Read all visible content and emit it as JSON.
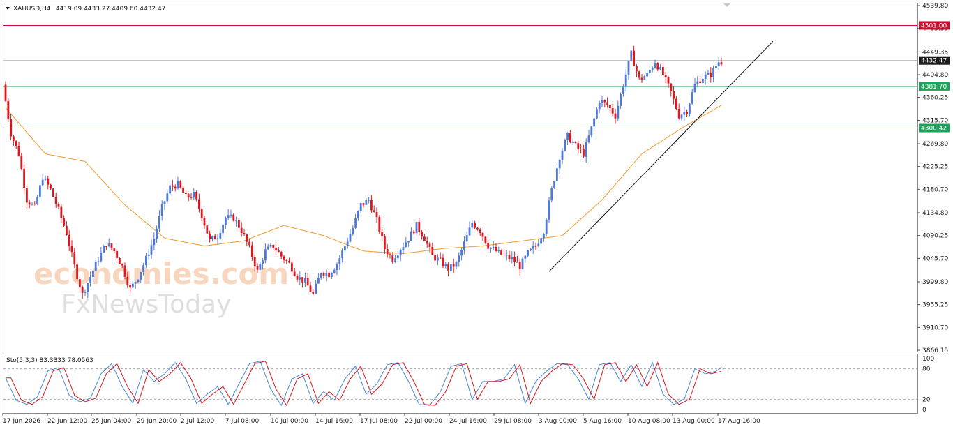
{
  "header": {
    "symbol": "XAUUSD,H4",
    "ohlc": "4419.09 4433.27 4409.60 4432.47",
    "dropdown_icon": "triangle-down-icon"
  },
  "indicator": {
    "label": "Sto(5,3,3) 83.3333 78.0563",
    "levels": [
      "100",
      "80",
      "20",
      "0"
    ],
    "main_color": "#4a86d8",
    "signal_color": "#d0141e"
  },
  "watermark": {
    "line1": "economies.com",
    "line2": "FxNewsToday"
  },
  "colors": {
    "bull": "#4f79d8",
    "bear": "#e0161d",
    "ma": "#f39a2a",
    "resistance": "#c8102e",
    "support": "#1fa25a",
    "trendline": "#111111"
  },
  "chart_data": {
    "type": "candlestick",
    "title": "XAUUSD,H4",
    "ylim": [
      3866.15,
      4539.8
    ],
    "y_ticks": [
      "4539.80",
      "4495.35",
      "4449.35",
      "4404.80",
      "4360.25",
      "4315.70",
      "4269.80",
      "4225.25",
      "4180.70",
      "4134.80",
      "4090.25",
      "4045.70",
      "3999.80",
      "3955.25",
      "3910.70",
      "3866.15"
    ],
    "x_ticks": [
      "17 Jun 2026",
      "22 Jun 12:00",
      "25 Jun 04:00",
      "29 Jun 20:00",
      "2 Jul 12:00",
      "7 Jul 08:00",
      "10 Jul 00:00",
      "14 Jul 16:00",
      "17 Jul 08:00",
      "22 Jul 00:00",
      "24 Jul 16:00",
      "29 Jul 08:00",
      "3 Aug 00:00",
      "5 Aug 16:00",
      "10 Aug 08:00",
      "13 Aug 00:00",
      "17 Aug 16:00"
    ],
    "levels": [
      {
        "value": 4501.0,
        "label": "4501.00",
        "kind": "resistance"
      },
      {
        "value": 4432.47,
        "label": "4432.47",
        "kind": "current"
      },
      {
        "value": 4381.7,
        "label": "4381.70",
        "kind": "support"
      },
      {
        "value": 4300.42,
        "label": "4300.42",
        "kind": "support"
      }
    ],
    "trendline": {
      "from": [
        4,
        4020
      ],
      "to": [
        109,
        4470
      ]
    },
    "anchors": [
      [
        0,
        4385
      ],
      [
        3,
        4290
      ],
      [
        6,
        4250
      ],
      [
        9,
        4160
      ],
      [
        12,
        4145
      ],
      [
        15,
        4205
      ],
      [
        18,
        4180
      ],
      [
        21,
        4140
      ],
      [
        24,
        4095
      ],
      [
        27,
        4030
      ],
      [
        30,
        3975
      ],
      [
        33,
        4010
      ],
      [
        36,
        4045
      ],
      [
        39,
        4075
      ],
      [
        42,
        4060
      ],
      [
        45,
        4030
      ],
      [
        48,
        3985
      ],
      [
        51,
        4010
      ],
      [
        54,
        4045
      ],
      [
        57,
        4085
      ],
      [
        60,
        4145
      ],
      [
        63,
        4185
      ],
      [
        66,
        4190
      ],
      [
        69,
        4165
      ],
      [
        72,
        4170
      ],
      [
        75,
        4130
      ],
      [
        78,
        4080
      ],
      [
        81,
        4090
      ],
      [
        84,
        4125
      ],
      [
        87,
        4125
      ],
      [
        90,
        4100
      ],
      [
        93,
        4065
      ],
      [
        96,
        4020
      ],
      [
        99,
        4060
      ],
      [
        102,
        4070
      ],
      [
        105,
        4050
      ],
      [
        108,
        4035
      ],
      [
        111,
        4010
      ],
      [
        114,
        4000
      ],
      [
        117,
        3975
      ],
      [
        120,
        4020
      ],
      [
        123,
        4015
      ],
      [
        126,
        4035
      ],
      [
        129,
        4070
      ],
      [
        132,
        4105
      ],
      [
        135,
        4150
      ],
      [
        138,
        4160
      ],
      [
        141,
        4120
      ],
      [
        144,
        4065
      ],
      [
        147,
        4045
      ],
      [
        150,
        4065
      ],
      [
        153,
        4085
      ],
      [
        156,
        4110
      ],
      [
        159,
        4085
      ],
      [
        162,
        4050
      ],
      [
        165,
        4040
      ],
      [
        168,
        4025
      ],
      [
        171,
        4035
      ],
      [
        174,
        4075
      ],
      [
        177,
        4115
      ],
      [
        180,
        4100
      ],
      [
        183,
        4070
      ],
      [
        186,
        4060
      ],
      [
        189,
        4050
      ],
      [
        192,
        4045
      ],
      [
        195,
        4030
      ],
      [
        198,
        4055
      ],
      [
        201,
        4070
      ],
      [
        204,
        4100
      ],
      [
        207,
        4180
      ],
      [
        210,
        4245
      ],
      [
        213,
        4285
      ],
      [
        216,
        4265
      ],
      [
        219,
        4250
      ],
      [
        222,
        4300
      ],
      [
        225,
        4355
      ],
      [
        228,
        4345
      ],
      [
        231,
        4325
      ],
      [
        234,
        4385
      ],
      [
        237,
        4445
      ],
      [
        240,
        4395
      ],
      [
        243,
        4405
      ],
      [
        246,
        4430
      ],
      [
        249,
        4405
      ],
      [
        252,
        4370
      ],
      [
        255,
        4325
      ],
      [
        258,
        4335
      ],
      [
        261,
        4385
      ],
      [
        264,
        4400
      ],
      [
        267,
        4405
      ],
      [
        270,
        4430
      ]
    ],
    "ma_anchors": [
      [
        0,
        4340
      ],
      [
        15,
        4250
      ],
      [
        30,
        4235
      ],
      [
        45,
        4150
      ],
      [
        60,
        4085
      ],
      [
        75,
        4070
      ],
      [
        90,
        4080
      ],
      [
        105,
        4110
      ],
      [
        120,
        4090
      ],
      [
        135,
        4060
      ],
      [
        150,
        4055
      ],
      [
        165,
        4065
      ],
      [
        180,
        4070
      ],
      [
        195,
        4080
      ],
      [
        210,
        4090
      ],
      [
        225,
        4160
      ],
      [
        240,
        4250
      ],
      [
        255,
        4300
      ],
      [
        270,
        4345
      ]
    ],
    "stoch_anchors": [
      [
        0,
        62
      ],
      [
        4,
        18
      ],
      [
        8,
        10
      ],
      [
        12,
        25
      ],
      [
        16,
        76
      ],
      [
        20,
        82
      ],
      [
        24,
        28
      ],
      [
        28,
        15
      ],
      [
        32,
        22
      ],
      [
        36,
        70
      ],
      [
        40,
        90
      ],
      [
        44,
        45
      ],
      [
        48,
        12
      ],
      [
        52,
        78
      ],
      [
        56,
        55
      ],
      [
        60,
        70
      ],
      [
        64,
        92
      ],
      [
        68,
        60
      ],
      [
        72,
        12
      ],
      [
        76,
        30
      ],
      [
        80,
        45
      ],
      [
        84,
        10
      ],
      [
        88,
        50
      ],
      [
        92,
        90
      ],
      [
        96,
        95
      ],
      [
        100,
        40
      ],
      [
        104,
        8
      ],
      [
        108,
        60
      ],
      [
        112,
        70
      ],
      [
        116,
        12
      ],
      [
        120,
        35
      ],
      [
        124,
        18
      ],
      [
        128,
        60
      ],
      [
        132,
        85
      ],
      [
        136,
        30
      ],
      [
        140,
        50
      ],
      [
        144,
        88
      ],
      [
        148,
        92
      ],
      [
        152,
        55
      ],
      [
        156,
        10
      ],
      [
        160,
        8
      ],
      [
        164,
        35
      ],
      [
        168,
        85
      ],
      [
        172,
        90
      ],
      [
        176,
        20
      ],
      [
        180,
        55
      ],
      [
        184,
        55
      ],
      [
        188,
        60
      ],
      [
        192,
        88
      ],
      [
        196,
        12
      ],
      [
        200,
        55
      ],
      [
        204,
        75
      ],
      [
        208,
        90
      ],
      [
        212,
        88
      ],
      [
        216,
        60
      ],
      [
        220,
        20
      ],
      [
        224,
        88
      ],
      [
        228,
        92
      ],
      [
        232,
        55
      ],
      [
        236,
        88
      ],
      [
        240,
        45
      ],
      [
        244,
        92
      ],
      [
        248,
        30
      ],
      [
        252,
        10
      ],
      [
        256,
        20
      ],
      [
        260,
        80
      ],
      [
        264,
        70
      ],
      [
        268,
        75
      ],
      [
        270,
        83
      ]
    ]
  }
}
